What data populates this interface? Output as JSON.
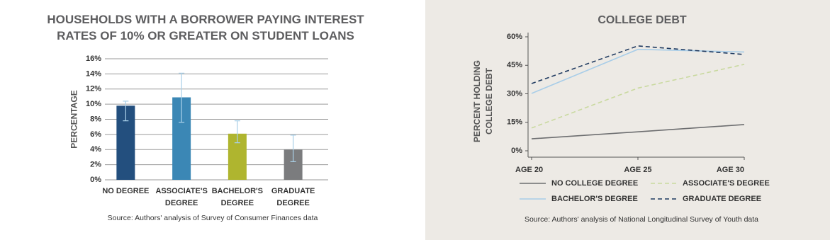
{
  "chart_data": [
    {
      "type": "bar",
      "title": "HOUSEHOLDS WITH A BORROWER PAYING INTEREST RATES OF 10% OR GREATER ON STUDENT LOANS",
      "ylabel": "PERCENTAGE",
      "categories": [
        "NO DEGREE",
        "ASSOCIATE'S DEGREE",
        "BACHELOR'S DEGREE",
        "GRADUATE DEGREE"
      ],
      "values": [
        9.8,
        10.9,
        6.1,
        4.0
      ],
      "errors_lower": [
        7.8,
        7.6,
        4.9,
        2.4
      ],
      "errors_upper": [
        10.4,
        14.1,
        7.8,
        5.9
      ],
      "colors": [
        "#234f7e",
        "#3b87b5",
        "#afb52f",
        "#7b7c7e"
      ],
      "error_color": "#a9d0e8",
      "ylim": [
        0,
        16
      ],
      "yticks": [
        {
          "value": 0,
          "label": "0%"
        },
        {
          "value": 2,
          "label": "2%"
        },
        {
          "value": 4,
          "label": "4%"
        },
        {
          "value": 6,
          "label": "6%"
        },
        {
          "value": 8,
          "label": "8%"
        },
        {
          "value": 10,
          "label": "10%"
        },
        {
          "value": 12,
          "label": "12%"
        },
        {
          "value": 14,
          "label": "14%"
        },
        {
          "value": 16,
          "label": "16%"
        }
      ],
      "grid": true,
      "source": "Source: Authors' analysis of Survey of Consumer Finances data"
    },
    {
      "type": "line",
      "title": "COLLEGE DEBT",
      "ylabel": "PERCENT HOLDING COLLEGE DEBT",
      "categories": [
        "AGE 20",
        "AGE 25",
        "AGE 30"
      ],
      "series": [
        {
          "name": "NO COLLEGE DEGREE",
          "color": "#6d6e70",
          "dash": false,
          "values": [
            6.3,
            10,
            13.8
          ]
        },
        {
          "name": "ASSOCIATE'S DEGREE",
          "color": "#c9d99f",
          "dash": true,
          "values": [
            12,
            33,
            45.5
          ]
        },
        {
          "name": "BACHELOR'S DEGREE",
          "color": "#a8cde8",
          "dash": false,
          "values": [
            30.2,
            53.4,
            52
          ]
        },
        {
          "name": "GRADUATE DEGREE",
          "color": "#1f3a60",
          "dash": true,
          "values": [
            35.4,
            55.2,
            50.7
          ]
        }
      ],
      "ylim": [
        0,
        60
      ],
      "yticks": [
        {
          "value": 0,
          "label": "0%"
        },
        {
          "value": 15,
          "label": "15%"
        },
        {
          "value": 30,
          "label": "30%"
        },
        {
          "value": 45,
          "label": "45%"
        },
        {
          "value": 60,
          "label": "60%"
        }
      ],
      "source": "Source: Authors' analysis of National Longitudinal Survey of Youth data"
    }
  ]
}
